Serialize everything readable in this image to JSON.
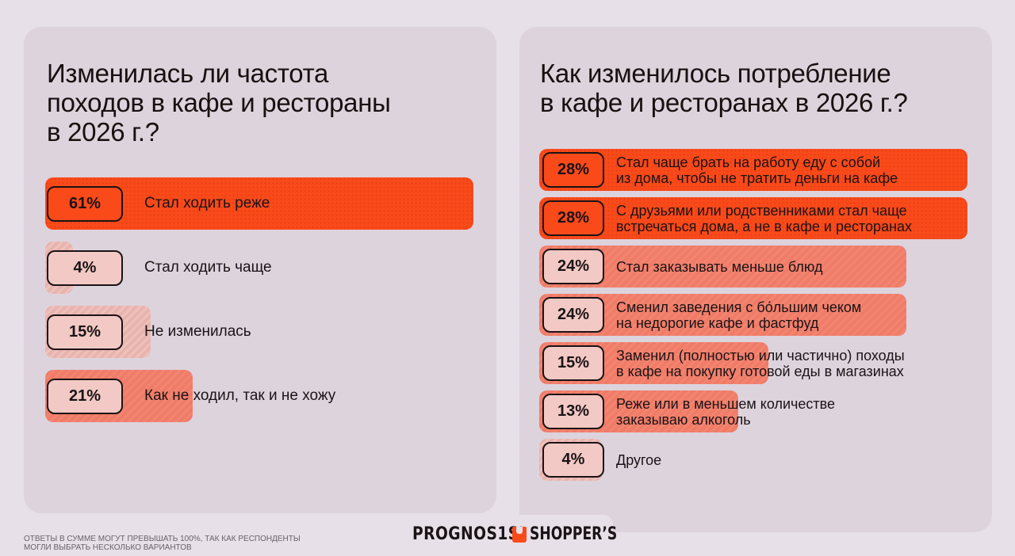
{
  "chart_data": [
    {
      "type": "bar",
      "title": "Изменилась ли частота\nпоходов в кафе и рестораны\nв 2026 г.?",
      "unit": "%",
      "categories": [
        "Стал ходить реже",
        "Стал ходить чаще",
        "Не изменилась",
        "Как не ходил, так и не хожу"
      ],
      "values": [
        61,
        4,
        15,
        21
      ],
      "value_labels": [
        "61%",
        "4%",
        "15%",
        "21%"
      ],
      "xlim": [
        0,
        61
      ]
    },
    {
      "type": "bar",
      "title": "Как изменилось потребление\nв кафе и ресторанах в 2026 г.?",
      "unit": "%",
      "categories": [
        "Стал чаще брать на работу еду с собой\nиз дома, чтобы не тратить деньги на кафе",
        "С друзьями или родственниками стал чаще\nвстречаться дома, а не в кафе и ресторанах",
        "Стал заказывать меньше блюд",
        "Сменил заведения с бо́льшим чеком\nна недорогие кафе и фастфуд",
        "Заменил (полностью или частично) походы\nв кафе на покупку готовой еды в магазинах",
        "Реже или в меньшем количестве\nзаказываю алкоголь",
        "Другое"
      ],
      "values": [
        28,
        28,
        24,
        24,
        15,
        13,
        4
      ],
      "value_labels": [
        "28%",
        "28%",
        "24%",
        "24%",
        "15%",
        "13%",
        "4%"
      ],
      "xlim": [
        0,
        28
      ]
    }
  ],
  "footnote": "Ответы в сумме могут превышать 100%, так как респонденты\nмогли выбрать несколько вариантов",
  "logos": {
    "prognosis": "PROGNOS1S",
    "shoppers": "SHOPPER’S"
  },
  "colors": {
    "strong": "#fa4a1a",
    "mid": "#f07b66",
    "light": "#e9b3ad",
    "panel": "#ddd3dd",
    "background": "#e7e0e8"
  }
}
